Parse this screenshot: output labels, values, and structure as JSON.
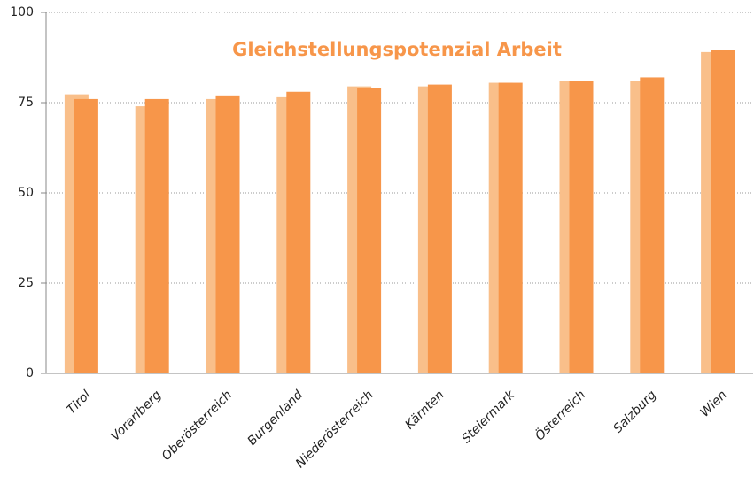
{
  "chart_data": {
    "type": "bar",
    "title": "Gleichstellungspotenzial Arbeit",
    "categories": [
      "Tirol",
      "Vorarlberg",
      "Oberösterreich",
      "Burgenland",
      "Niederösterreich",
      "Kärnten",
      "Steiermark",
      "Österreich",
      "Salzburg",
      "Wien"
    ],
    "series": [
      {
        "color": "#f9bf8a",
        "values": [
          77.3,
          74,
          76,
          76.5,
          79.5,
          79.5,
          80.5,
          81,
          81,
          89
        ]
      },
      {
        "color": "#f7964a",
        "values": [
          76,
          76,
          77,
          78,
          79,
          80,
          80.5,
          81,
          82,
          89.7
        ]
      }
    ],
    "ylim": [
      0,
      100
    ],
    "yticks": [
      0,
      25,
      50,
      75,
      100
    ],
    "grid": true
  }
}
